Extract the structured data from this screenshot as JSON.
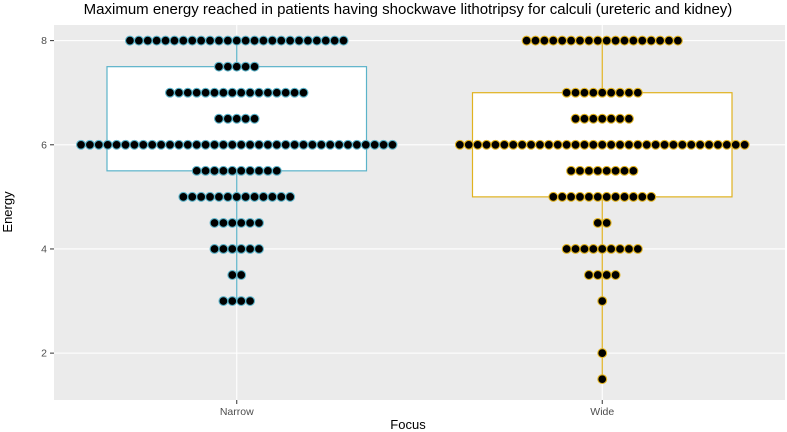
{
  "chart_data": {
    "type": "box + dotplot",
    "title": "Maximum energy reached in patients having shockwave lithotripsy for calculi (ureteric and kidney)",
    "xlabel": "Focus",
    "ylabel": "Energy",
    "categories": [
      "Narrow",
      "Wide"
    ],
    "ylim": [
      1.1,
      8.3
    ],
    "yticks": [
      2,
      4,
      6,
      8
    ],
    "grid": true,
    "colors": {
      "panel_bg": "#ebebeb",
      "grid": "#ffffff",
      "Narrow": "#5bb3c9",
      "Wide": "#e0b21f",
      "point_fill": "#000000"
    },
    "boxes": [
      {
        "group": "Narrow",
        "min": 3.0,
        "q1": 5.5,
        "median": 6.0,
        "q3": 7.5,
        "max": 8.0
      },
      {
        "group": "Wide",
        "min": 1.5,
        "q1": 5.0,
        "median": 6.0,
        "q3": 7.0,
        "max": 8.0
      }
    ],
    "dot_counts": [
      {
        "group": "Narrow",
        "bins": [
          {
            "energy": 8.0,
            "count": 25
          },
          {
            "energy": 7.5,
            "count": 5
          },
          {
            "energy": 7.0,
            "count": 16
          },
          {
            "energy": 6.5,
            "count": 5
          },
          {
            "energy": 6.0,
            "count": 36
          },
          {
            "energy": 5.5,
            "count": 10
          },
          {
            "energy": 5.0,
            "count": 13
          },
          {
            "energy": 4.5,
            "count": 6
          },
          {
            "energy": 4.0,
            "count": 6
          },
          {
            "energy": 3.5,
            "count": 2
          },
          {
            "energy": 3.0,
            "count": 4
          }
        ]
      },
      {
        "group": "Wide",
        "bins": [
          {
            "energy": 8.0,
            "count": 18
          },
          {
            "energy": 7.0,
            "count": 9
          },
          {
            "energy": 6.5,
            "count": 7
          },
          {
            "energy": 6.0,
            "count": 33
          },
          {
            "energy": 5.5,
            "count": 8
          },
          {
            "energy": 5.0,
            "count": 12
          },
          {
            "energy": 4.5,
            "count": 2
          },
          {
            "energy": 4.0,
            "count": 9
          },
          {
            "energy": 3.5,
            "count": 4
          },
          {
            "energy": 3.0,
            "count": 1
          },
          {
            "energy": 2.0,
            "count": 1
          },
          {
            "energy": 1.5,
            "count": 1
          }
        ]
      }
    ]
  }
}
